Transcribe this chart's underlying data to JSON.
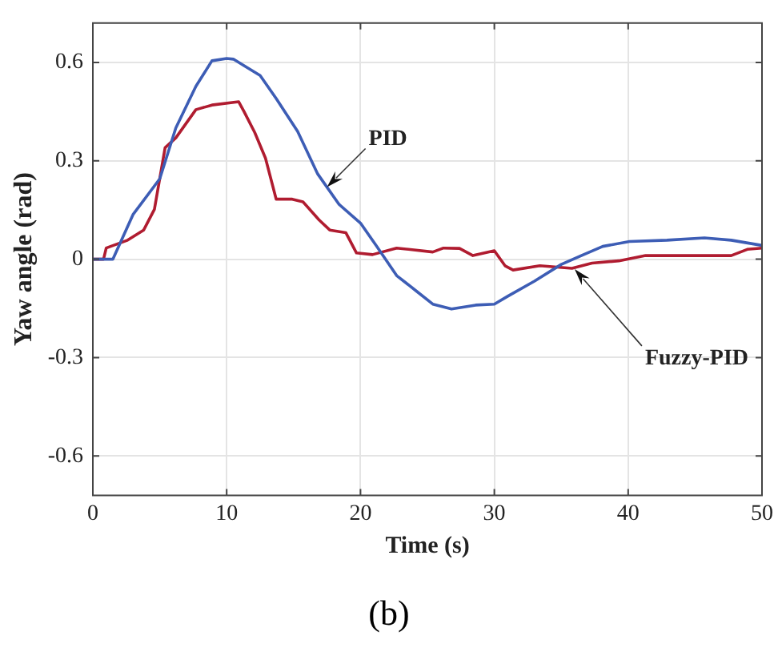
{
  "chart_data": {
    "type": "line",
    "xlabel": "Time (s)",
    "ylabel": "Yaw angle (rad)",
    "xlim": [
      0,
      50
    ],
    "xticks": [
      0,
      10,
      20,
      30,
      40,
      50
    ],
    "ylim": [
      -0.72,
      0.72
    ],
    "yticks": [
      -0.6,
      -0.3,
      0,
      0.3,
      0.6
    ],
    "grid": true,
    "legend": false,
    "marker": "none",
    "line_style": "solid",
    "series": [
      {
        "color": "#3d5db5",
        "x": [
          0,
          1.5,
          3.0,
          5.0,
          6.2,
          7.7,
          8.9,
          10,
          10.5,
          11.3,
          12.5,
          13.7,
          15.3,
          16.8,
          18.4,
          20,
          21.2,
          22.7,
          24.2,
          25.4,
          26.8,
          28.6,
          30,
          31,
          33,
          35,
          36.5,
          38.1,
          40.1,
          42.9,
          45.7,
          47.7,
          50
        ],
        "values": [
          0,
          0,
          0.136,
          0.245,
          0.4,
          0.527,
          0.605,
          0.612,
          0.61,
          0.59,
          0.56,
          0.49,
          0.39,
          0.26,
          0.167,
          0.11,
          0.04,
          -0.05,
          -0.098,
          -0.137,
          -0.152,
          -0.14,
          -0.137,
          -0.113,
          -0.067,
          -0.016,
          0.011,
          0.039,
          0.054,
          0.058,
          0.065,
          0.058,
          0.042
        ]
      },
      {
        "color": "#b01c30",
        "x": [
          0,
          0.8,
          1.0,
          2.6,
          3.8,
          4.6,
          5.4,
          6.2,
          7.7,
          8.9,
          10.9,
          11.3,
          12.1,
          12.9,
          13.7,
          14.9,
          15.7,
          16.9,
          17.7,
          18.9,
          19.7,
          20.9,
          22.7,
          25.4,
          26.2,
          27.4,
          28.4,
          30,
          30.8,
          31.4,
          33.4,
          35.8,
          37.3,
          39.3,
          41.3,
          43.7,
          47.7,
          48.9,
          50
        ],
        "values": [
          0,
          0,
          0.034,
          0.058,
          0.089,
          0.152,
          0.34,
          0.37,
          0.456,
          0.47,
          0.48,
          0.45,
          0.386,
          0.308,
          0.183,
          0.183,
          0.175,
          0.12,
          0.089,
          0.081,
          0.019,
          0.014,
          0.034,
          0.022,
          0.034,
          0.033,
          0.011,
          0.026,
          -0.02,
          -0.033,
          -0.02,
          -0.028,
          -0.012,
          -0.005,
          0.011,
          0.011,
          0.011,
          0.03,
          0.034
        ]
      }
    ],
    "annotations": [
      {
        "text": "PID",
        "x": 17.5,
        "y": 0.22
      },
      {
        "text": "Fuzzy-PID",
        "x": 36,
        "y": -0.03
      },
      "(b)"
    ]
  }
}
